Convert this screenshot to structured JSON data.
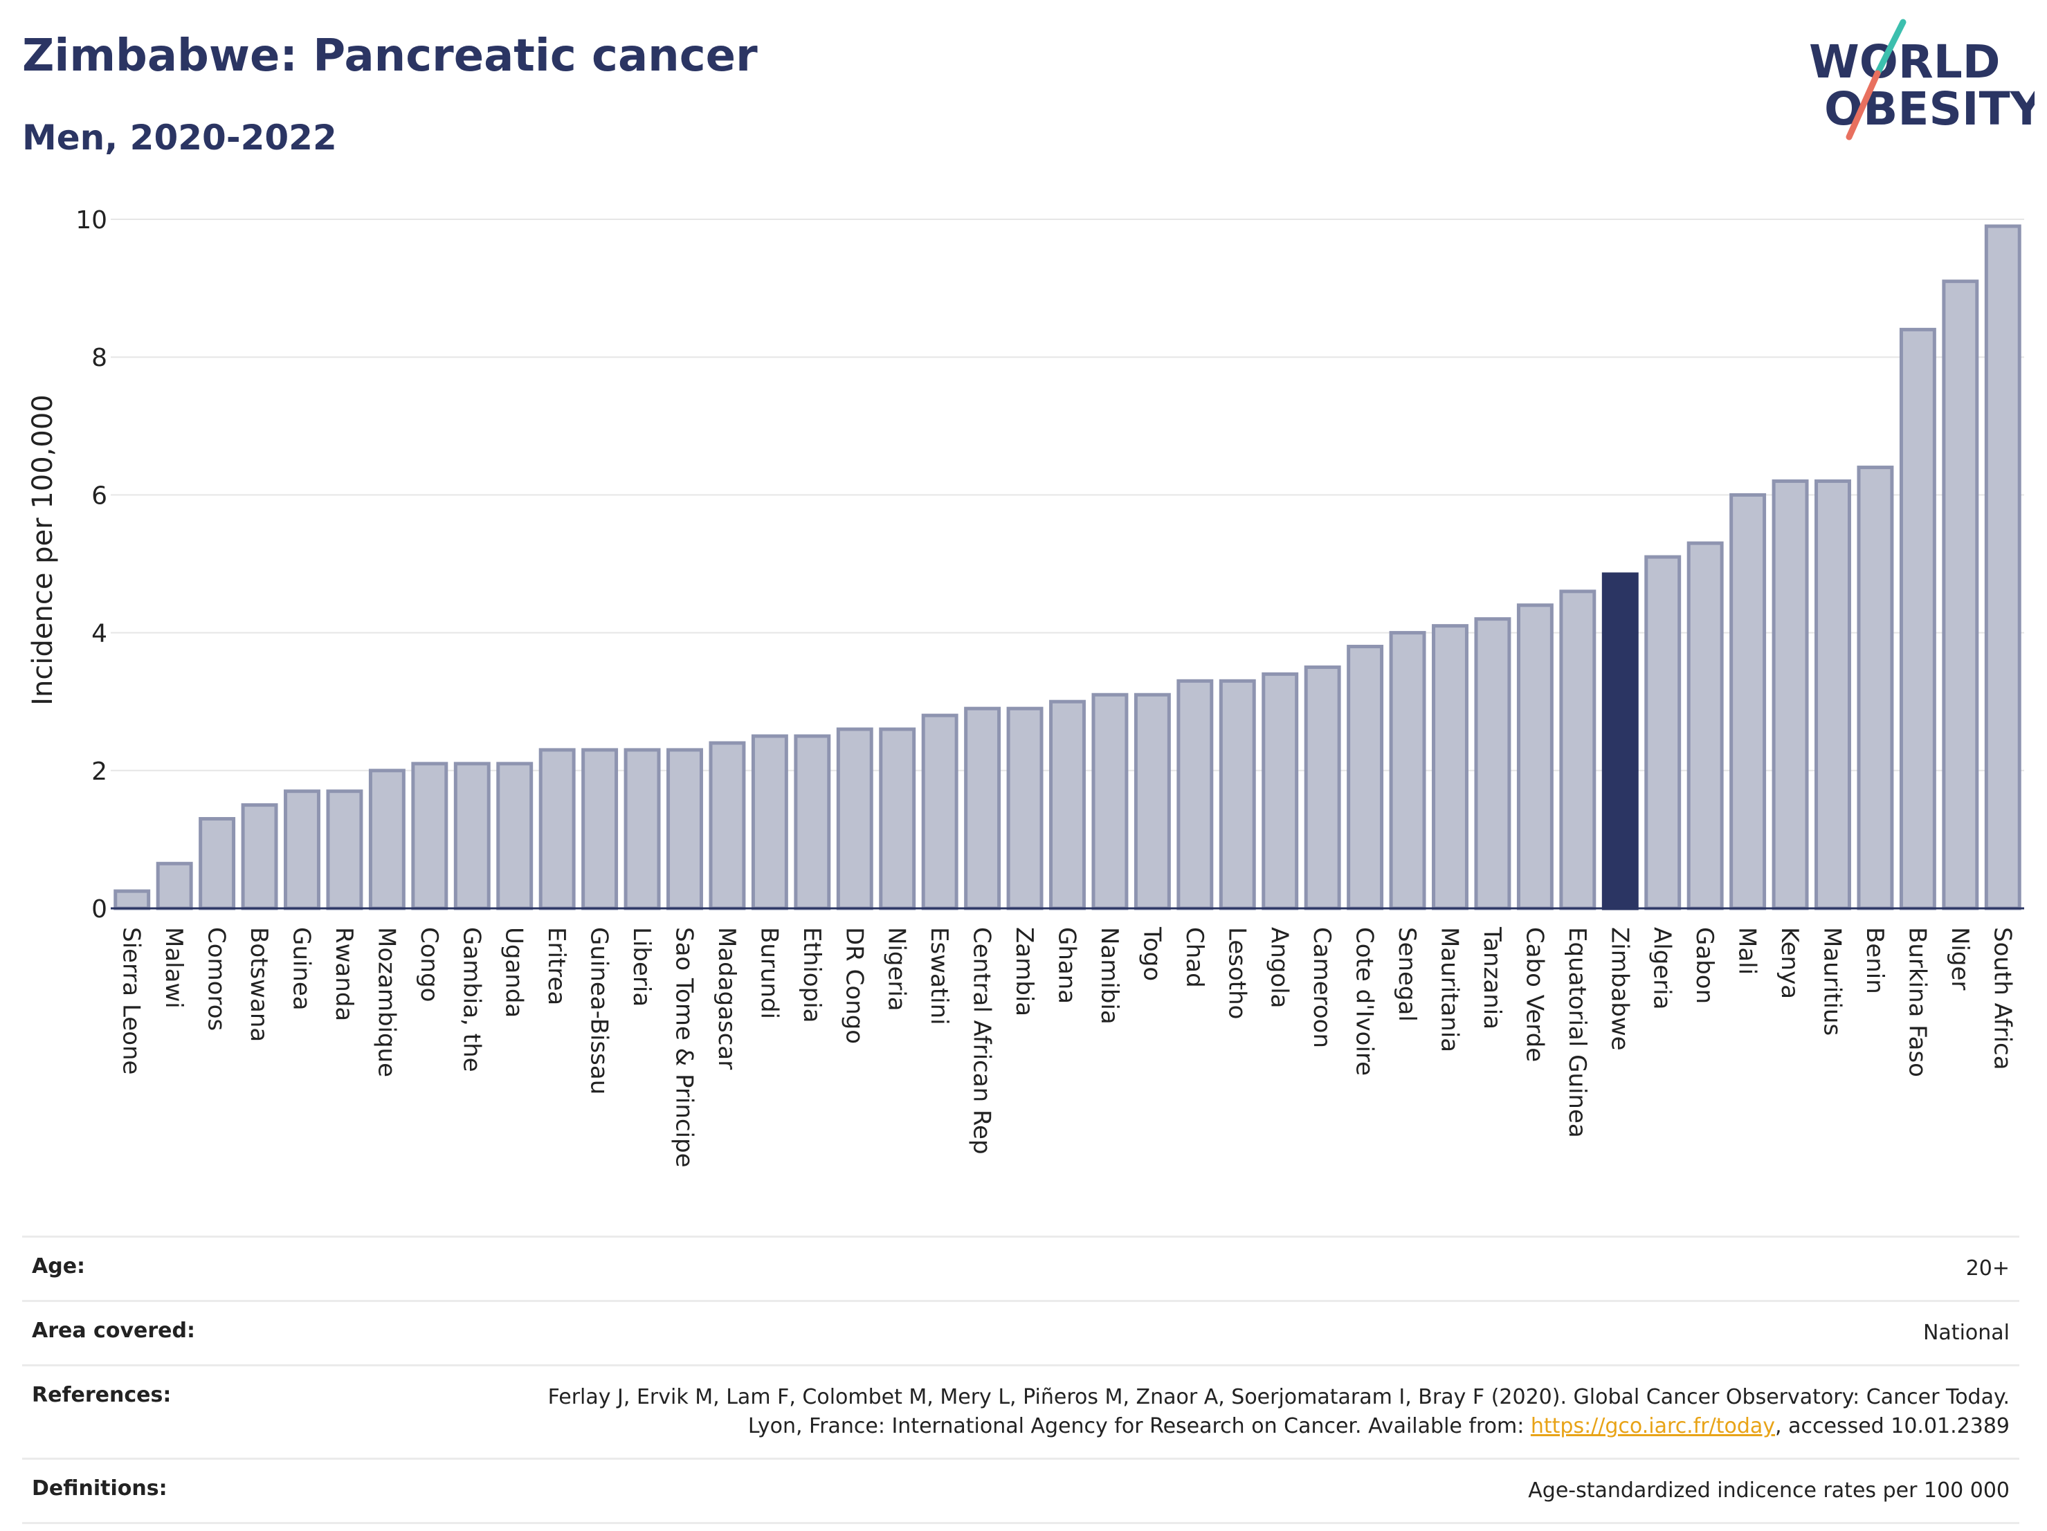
{
  "header": {
    "title": "Zimbabwe: Pancreatic cancer",
    "subtitle": "Men, 2020-2022"
  },
  "logo": {
    "line1": "WORLD",
    "line2": "OBESITY"
  },
  "colors": {
    "bar": "#bdc1d0",
    "bar_border": "#8e94b0",
    "highlight": "#2b3563",
    "grid": "#e6e6e6",
    "axis": "#2b3563"
  },
  "chart_data": {
    "type": "bar",
    "title": "Zimbabwe: Pancreatic cancer",
    "subtitle": "Men, 2020-2022",
    "xlabel": "",
    "ylabel": "Incidence per 100,000",
    "ylim": [
      0,
      10
    ],
    "yticks": [
      0,
      2,
      4,
      6,
      8,
      10
    ],
    "grid": true,
    "highlight": "Zimbabwe",
    "categories": [
      "Sierra Leone",
      "Malawi",
      "Comoros",
      "Botswana",
      "Guinea",
      "Rwanda",
      "Mozambique",
      "Congo",
      "Gambia, the",
      "Uganda",
      "Eritrea",
      "Guinea-Bissau",
      "Liberia",
      "Sao Tome & Principe",
      "Madagascar",
      "Burundi",
      "Ethiopia",
      "DR Congo",
      "Nigeria",
      "Eswatini",
      "Central African Rep",
      "Zambia",
      "Ghana",
      "Namibia",
      "Togo",
      "Chad",
      "Lesotho",
      "Angola",
      "Cameroon",
      "Cote d'Ivoire",
      "Senegal",
      "Mauritania",
      "Tanzania",
      "Cabo Verde",
      "Equatorial Guinea",
      "Zimbabwe",
      "Algeria",
      "Gabon",
      "Mali",
      "Kenya",
      "Mauritius",
      "Benin",
      "Burkina Faso",
      "Niger",
      "South Africa"
    ],
    "values": [
      0.25,
      0.65,
      1.3,
      1.5,
      1.7,
      1.7,
      2.0,
      2.1,
      2.1,
      2.1,
      2.3,
      2.3,
      2.3,
      2.3,
      2.4,
      2.5,
      2.5,
      2.6,
      2.6,
      2.8,
      2.9,
      2.9,
      3.0,
      3.1,
      3.1,
      3.3,
      3.3,
      3.4,
      3.5,
      3.8,
      4.0,
      4.1,
      4.2,
      4.4,
      4.6,
      4.85,
      5.1,
      5.3,
      6.0,
      6.2,
      6.2,
      6.4,
      8.4,
      9.1,
      9.9
    ]
  },
  "meta": {
    "age_label": "Age:",
    "age_value": "20+",
    "area_label": "Area covered:",
    "area_value": "National",
    "references_label": "References:",
    "references_text_1": "Ferlay J, Ervik M, Lam F, Colombet M, Mery L, Piñeros M, Znaor A, Soerjomataram I, Bray F (2020). Global Cancer Observatory: Cancer Today. Lyon, France: International Agency for Research on Cancer. Available from: ",
    "references_link": "https://gco.iarc.fr/today",
    "references_text_2": ", accessed 10.01.2389",
    "definitions_label": "Definitions:",
    "definitions_value": "Age-standardized indicence rates per 100 000"
  }
}
